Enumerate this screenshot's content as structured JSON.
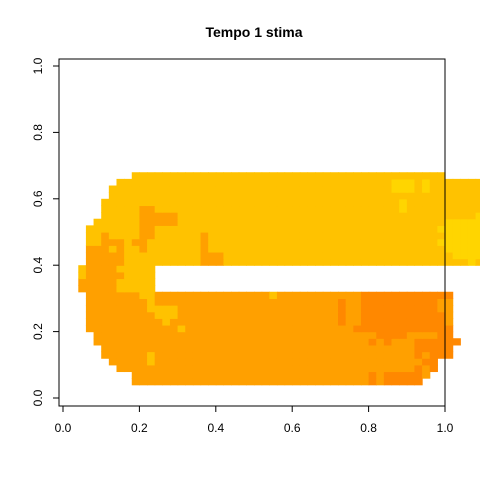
{
  "chart_data": {
    "type": "heatmap",
    "title": "Tempo 1 stima",
    "xlabel": "",
    "ylabel": "",
    "xlim": [
      0,
      1
    ],
    "ylim": [
      0,
      1
    ],
    "x_ticks": [
      "0.0",
      "0.2",
      "0.4",
      "0.6",
      "0.8",
      "1.0"
    ],
    "y_ticks": [
      "0.0",
      "0.2",
      "0.4",
      "0.6",
      "0.8",
      "1.0"
    ],
    "cell_size": 0.02,
    "palette": {
      "Y": "#FFE000",
      "L": "#FFD500",
      "G": "#FFC200",
      "O": "#FFA000",
      "D": "#FF8800"
    },
    "row_y0": 0.04,
    "rows": [
      ".........OOOOOOOOOOOOOOOOOOOOOOOOOOOOOOODODDDDD...........",
      ".........OOOOOOOOOOOOOOOOOOOOOOOOOOOOOOODODDDDDO..........",
      ".......OOOOOOOOOOOOOOOOOOOOOOOOOOOOOOOOOOOOOOODOD.........",
      "......OOOOOGOOOOOOOOOOOOOOOOOOOOOOOOOOOOOOOOOOODD.........",
      ".....OOOOOOGOOOOOOOOOOOOOOOOOOOOOOOOOOOOOOOOOODODDD.......",
      ".....OOOOOOOOOOOOOOOOOOOOOOOOOOOOOOOOOOOOOOOOODDDDD.......",
      "....OOOOOOOOOOOOOOOOOOOOOOOOOOOOOOOOOOOODODOOODDDDDD......",
      "....OOOOOOOOOOOOOOOOOOOOOOOOOOOOOOOOOOOOODDDDOOOODD.......",
      "...OOOOOOOOOOOOGOOOOOOOOOOOOOOOOOOOOOODDDDDDDDDDDDD.......",
      "...OOOOOOOOOOGOOOOOOOOOOOOOOOOOOOOOODOODDDDDDDDDDDO.......",
      "...OOOOOOOOOGGGOOOOOOOOOOOOOOOOOOOOODOODDDDDDDDDDDO.......",
      "...OOOOOOOOGGGGOOOOOOOOOOOOOOOOOOOOODOODDDDDDDDDDOO.......",
      "...OOOOOOOOGOOOOOOOOOOOOOOOOOOOOOOOODOODDDDDDDDDDOO.......",
      "...OOOOOOOGGOOOOOOOOOOOOOOOGOOOOOOOOOOODDDDDDDDDDDD.......",
      "..OOOOOGGGGG..............................................",
      "..OOOOOGGGGG..............................................",
      "..GOOOOOGGGG..............................................",
      "..GOOOOGGGGG..............................................",
      "...OOOOOGGGGGGGGGGOOOGGGGGGGGGGGGGGGGGGGGGGGGGGGGGGGGLGLGLG.",
      "...OOOOOGGGGGGGGGGOOOGGGGGGGGGGGGGGGGGGGGGGGGGGGGGGLLLLLLLLL",
      "...OOOGOGGOGGGGGGGOGGGGGGGGGGGGGGGGGGGGGGGGGGGGGGGLLLLLLLLL.",
      "...GGOOOGOOGGGGGGGOGGGGGGGGGGGGGGGGGGGGGGGGGGGGGGLLLLLLLLLL.",
      "...GGOGGGGOOGGGGGGOGGGGGGGGGGGGGGGGGGGGGGGGGGGGGGGLLLLLLLLL.",
      "...GGGGGGGOOGGGGGGGGGGGGGGGGGGGGGGGGGGGGGGGGGGGGGLLLLLLLLLL",
      "....GGGGGGOOOOOGGGGGGGGGGGGGGGGGGGGGGGGGGGGGGGGGGGLLLLLLLLL",
      ".....GGGGGOOOOOGGGGGGGGGGGGGGGGGGGGGGGGGGGGGGGGGGGGGGGLLLGLG",
      ".....GGGGGOOGGGGGGGGGGGGGGGGGGGGGGGGGGGGGGGGLGGGGGGGGGGGGLG.",
      ".....GGGGGGGGGGGGGGGGGGGGGGGGGGGGGGGGGGGGGGGLGGGGGGGGGGGGG..",
      "......GGGGGGGGGGGGGGGGGGGGGGGGGGGGGGGGGGGGGGGGGGGGGGGGGGG...",
      "......GGGGGGGGGGGGGGGGGGGGGGGGGGGGGGGGGGGGGLLLGLGGGGGGGGG...",
      ".......GGGGGGGGGGGGGGGGGGGGGGGGGGGGGGGGGGGGLLLGLGGGGGGG.....",
      ".........GGGGGGGGGGGGGGGGGGGGGGGGGGGGGGGGGGGGGGGGG........."
    ]
  }
}
